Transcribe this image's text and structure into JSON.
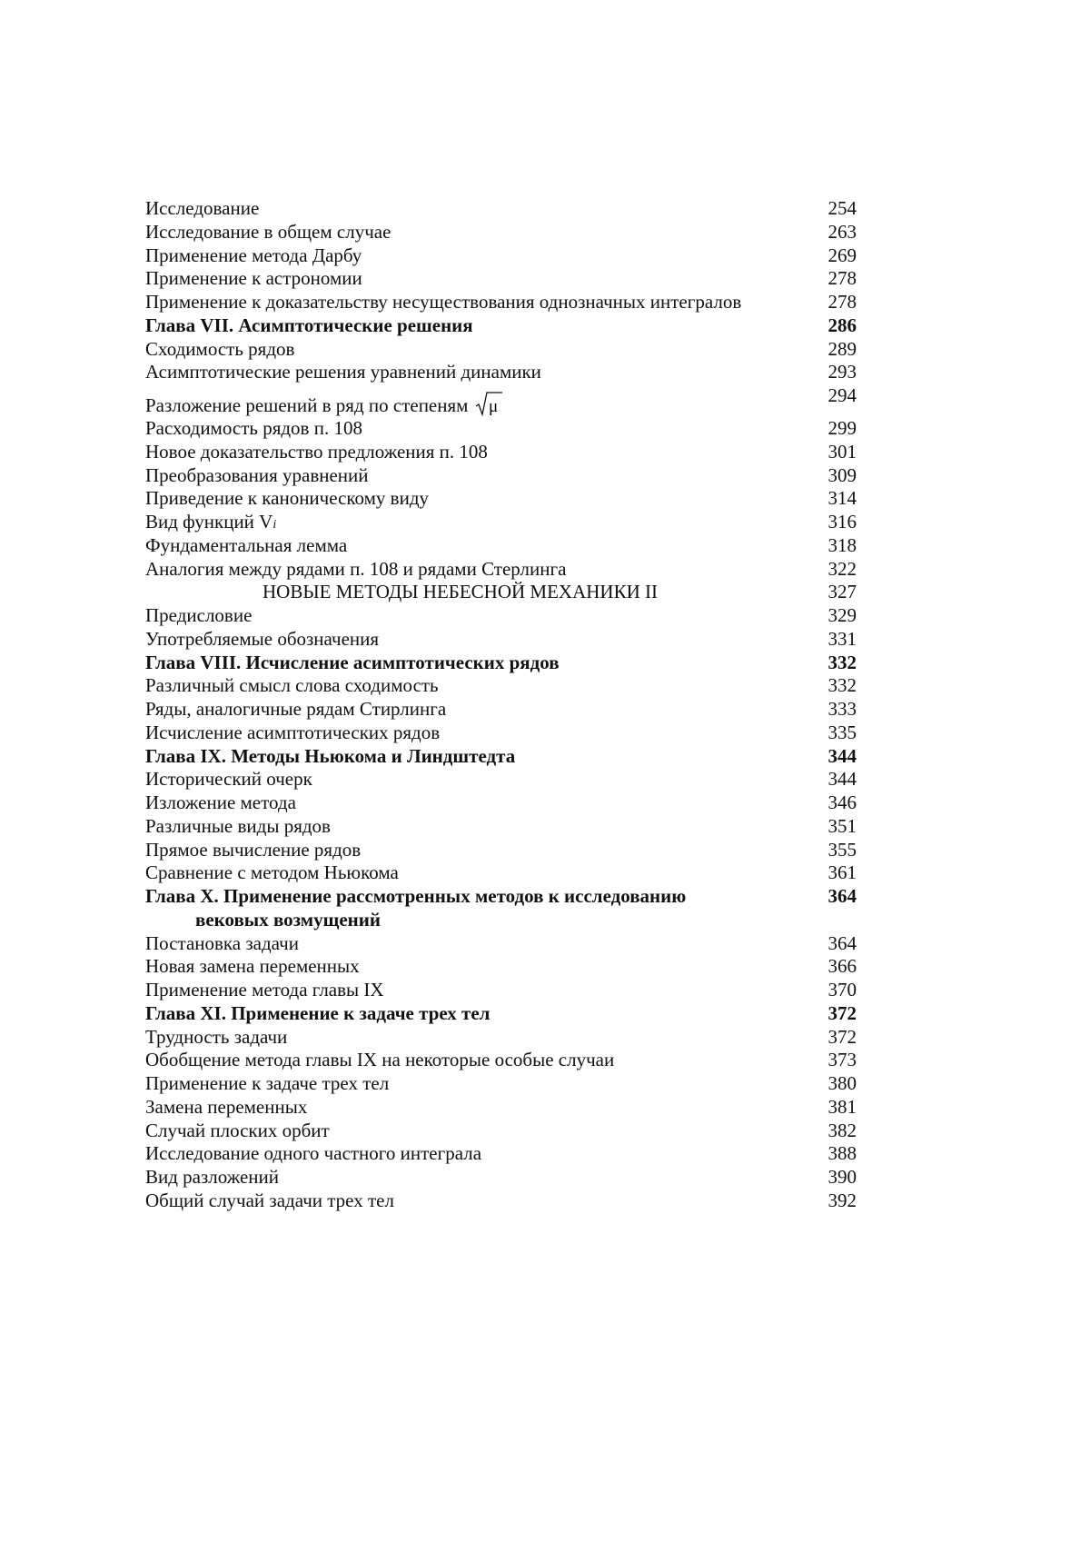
{
  "toc": [
    {
      "title": "Исследование",
      "page": "254"
    },
    {
      "title": "Исследование в общем случае",
      "page": "263"
    },
    {
      "title": "Применение метода Дарбу",
      "page": "269"
    },
    {
      "title": "Применение к астрономии",
      "page": "278"
    },
    {
      "title": "Применение к доказательству несуществования однозначных интегралов",
      "page": "278"
    },
    {
      "title": "Глава VII. Асимптотические решения",
      "page": "286",
      "style": "bold"
    },
    {
      "title": "Сходимость рядов",
      "page": "289"
    },
    {
      "title": "Асимптотические решения уравнений динамики",
      "page": "293"
    },
    {
      "title": "Разложение решений в ряд по степеням",
      "page": "294",
      "math": "μ",
      "style": "tall"
    },
    {
      "title": "Расходимость рядов п. 108",
      "page": "299"
    },
    {
      "title": "Новое доказательство предложения п. 108",
      "page": "301"
    },
    {
      "title": "Преобразования уравнений",
      "page": "309"
    },
    {
      "title": "Приведение к каноническому виду",
      "page": "314"
    },
    {
      "title": "Вид функций V",
      "sub": "i",
      "page": "316"
    },
    {
      "title": "Фундаментальная лемма",
      "page": "318"
    },
    {
      "title": "Аналогия между рядами п. 108 и рядами Стерлинга",
      "page": "322"
    },
    {
      "title": "НОВЫЕ МЕТОДЫ НЕБЕСНОЙ МЕХАНИКИ II",
      "page": "327",
      "style": "center"
    },
    {
      "title": "Предисловие",
      "page": "329"
    },
    {
      "title": "Употребляемые обозначения",
      "page": "331"
    },
    {
      "title": "Глава VIII. Исчисление асимптотических рядов",
      "page": "332",
      "style": "bold"
    },
    {
      "title": "Различный смысл слова сходимость",
      "page": "332"
    },
    {
      "title": "Ряды, аналогичные рядам Стирлинга",
      "page": "333"
    },
    {
      "title": "Исчисление асимптотических рядов",
      "page": "335"
    },
    {
      "title": "Глава IX. Методы Ньюкома и Линдштедта",
      "page": "344",
      "style": "bold"
    },
    {
      "title": "Исторический очерк",
      "page": "344"
    },
    {
      "title": "Изложение метода",
      "page": "346"
    },
    {
      "title": "Различные виды рядов",
      "page": "351"
    },
    {
      "title": "Прямое вычисление рядов",
      "page": "355"
    },
    {
      "title": "Сравнение с методом Ньюкома",
      "page": "361"
    },
    {
      "title": "Глава X. Применение рассмотренных методов к исследованию",
      "page": "364",
      "style": "bold"
    },
    {
      "title": "вековых возмущений",
      "page": "",
      "style": "bold indent2"
    },
    {
      "title": "Постановка задачи",
      "page": "364"
    },
    {
      "title": "Новая замена переменных",
      "page": "366"
    },
    {
      "title": "Применение метода главы IX",
      "page": "370"
    },
    {
      "title": "Глава XI. Применение к задаче трех тел",
      "page": "372",
      "style": "bold"
    },
    {
      "title": "Трудность задачи",
      "page": "372"
    },
    {
      "title": "Обобщение метода главы IX на некоторые особые случаи",
      "page": "373"
    },
    {
      "title": "Применение к задаче трех тел",
      "page": "380"
    },
    {
      "title": "Замена переменных",
      "page": "381"
    },
    {
      "title": "Случай плоских орбит",
      "page": "382"
    },
    {
      "title": "Исследование одного частного интеграла",
      "page": "388"
    },
    {
      "title": "Вид разложений",
      "page": "390"
    },
    {
      "title": "Общий случай задачи трех тел",
      "page": "392"
    }
  ]
}
